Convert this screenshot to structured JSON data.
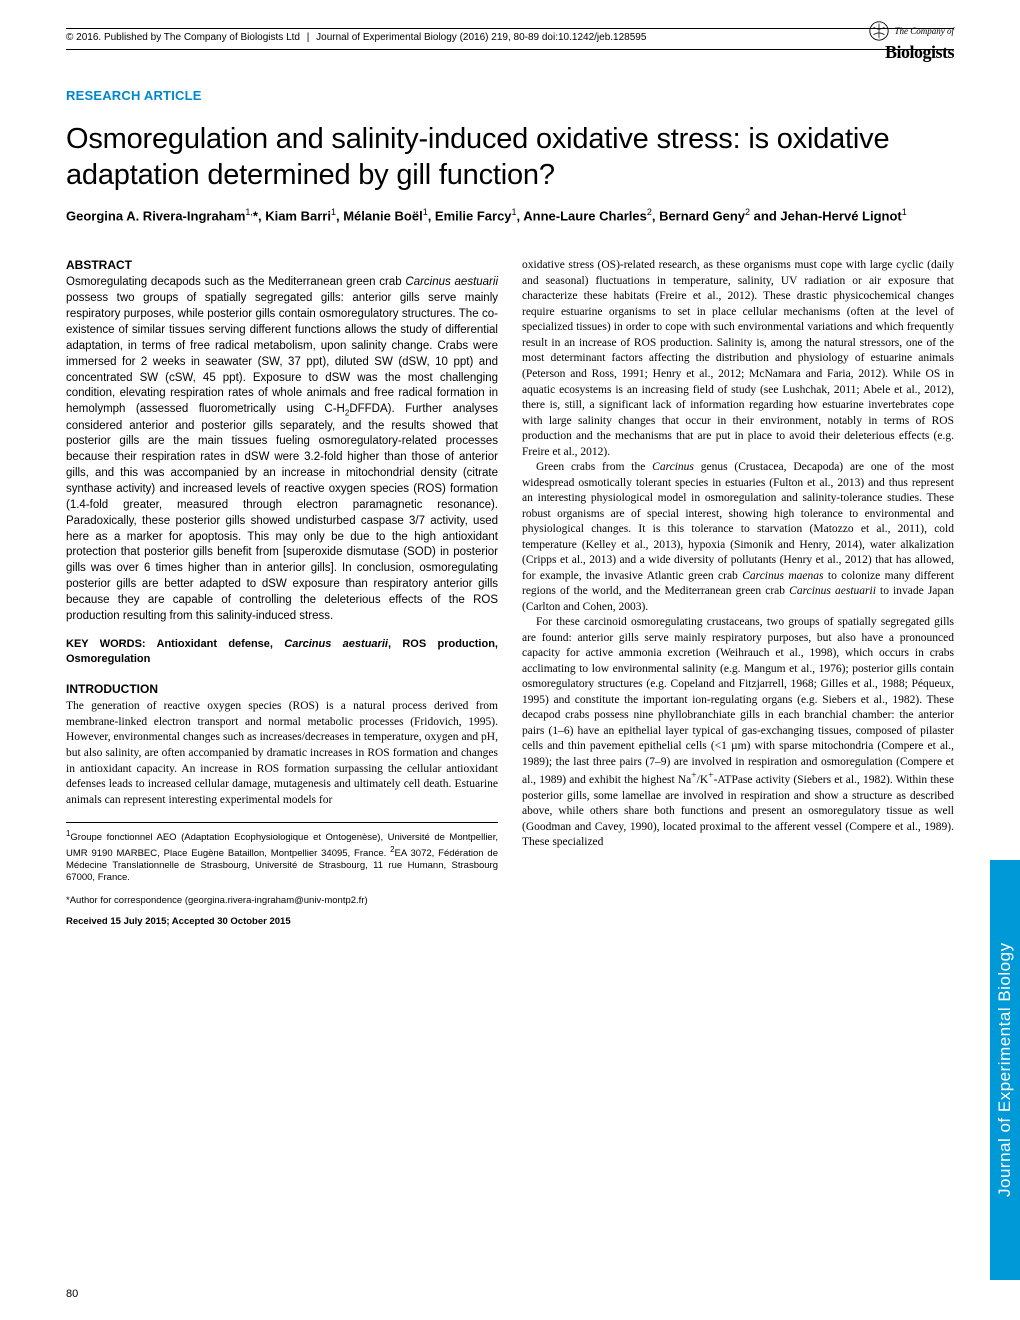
{
  "header": {
    "copyright": "© 2016. Published by The Company of Biologists Ltd",
    "journal_ref": "Journal of Experimental Biology (2016) 219, 80-89 doi:10.1242/jeb.128595"
  },
  "logo": {
    "line1": "The Company of",
    "line2": "Biologists"
  },
  "article_type": "RESEARCH ARTICLE",
  "title": "Osmoregulation and salinity-induced oxidative stress: is oxidative adaptation determined by gill function?",
  "authors_html": "Georgina A. Rivera-Ingraham<sup>1,</sup>*, Kiam Barri<sup>1</sup>, Mélanie Boël<sup>1</sup>, Emilie Farcy<sup>1</sup>, Anne-Laure Charles<sup>2</sup>, Bernard Geny<sup>2</sup> and Jehan-Hervé Lignot<sup>1</sup>",
  "abstract": {
    "heading": "ABSTRACT",
    "text_html": "Osmoregulating decapods such as the Mediterranean green crab <em>Carcinus aestuarii</em> possess two groups of spatially segregated gills: anterior gills serve mainly respiratory purposes, while posterior gills contain osmoregulatory structures. The co-existence of similar tissues serving different functions allows the study of differential adaptation, in terms of free radical metabolism, upon salinity change. Crabs were immersed for 2 weeks in seawater (SW, 37 ppt), diluted SW (dSW, 10 ppt) and concentrated SW (cSW, 45 ppt). Exposure to dSW was the most challenging condition, elevating respiration rates of whole animals and free radical formation in hemolymph (assessed fluorometrically using C-H<sub>2</sub>DFFDA). Further analyses considered anterior and posterior gills separately, and the results showed that posterior gills are the main tissues fueling osmoregulatory-related processes because their respiration rates in dSW were 3.2-fold higher than those of anterior gills, and this was accompanied by an increase in mitochondrial density (citrate synthase activity) and increased levels of reactive oxygen species (ROS) formation (1.4-fold greater, measured through electron paramagnetic resonance). Paradoxically, these posterior gills showed undisturbed caspase 3/7 activity, used here as a marker for apoptosis. This may only be due to the high antioxidant protection that posterior gills benefit from [superoxide dismutase (SOD) in posterior gills was over 6 times higher than in anterior gills]. In conclusion, osmoregulating posterior gills are better adapted to dSW exposure than respiratory anterior gills because they are capable of controlling the deleterious effects of the ROS production resulting from this salinity-induced stress."
  },
  "keywords": {
    "label": "KEY WORDS:",
    "text_html": "Antioxidant defense, <em>Carcinus aestuarii</em>, ROS production, Osmoregulation"
  },
  "introduction": {
    "heading": "INTRODUCTION",
    "para1_html": "The generation of reactive oxygen species (ROS) is a natural process derived from membrane-linked electron transport and normal metabolic processes (Fridovich, 1995). However, environmental changes such as increases/decreases in temperature, oxygen and pH, but also salinity, are often accompanied by dramatic increases in ROS formation and changes in antioxidant capacity. An increase in ROS formation surpassing the cellular antioxidant defenses leads to increased cellular damage, mutagenesis and ultimately cell death. Estuarine animals can represent interesting experimental models for"
  },
  "affiliations": "<sup>1</sup>Groupe fonctionnel AEO (Adaptation Ecophysiologique et Ontogenèse), Université de Montpellier, UMR 9190 MARBEC, Place Eugène Bataillon, Montpellier 34095, France. <sup>2</sup>EA 3072, Fédération de Médecine Translationnelle de Strasbourg, Université de Strasbourg, 11 rue Humann, Strasbourg 67000, France.",
  "correspondence": "*Author for correspondence (georgina.rivera-ingraham@univ-montp2.fr)",
  "dates": "Received 15 July 2015; Accepted 30 October 2015",
  "right_column": {
    "para1_html": "oxidative stress (OS)-related research, as these organisms must cope with large cyclic (daily and seasonal) fluctuations in temperature, salinity, UV radiation or air exposure that characterize these habitats (Freire et al., 2012). These drastic physicochemical changes require estuarine organisms to set in place cellular mechanisms (often at the level of specialized tissues) in order to cope with such environmental variations and which frequently result in an increase of ROS production. Salinity is, among the natural stressors, one of the most determinant factors affecting the distribution and physiology of estuarine animals (Peterson and Ross, 1991; Henry et al., 2012; McNamara and Faria, 2012). While OS in aquatic ecosystems is an increasing field of study (see Lushchak, 2011; Abele et al., 2012), there is, still, a significant lack of information regarding how estuarine invertebrates cope with large salinity changes that occur in their environment, notably in terms of ROS production and the mechanisms that are put in place to avoid their deleterious effects (e.g. Freire et al., 2012).",
    "para2_html": "Green crabs from the <em>Carcinus</em> genus (Crustacea, Decapoda) are one of the most widespread osmotically tolerant species in estuaries (Fulton et al., 2013) and thus represent an interesting physiological model in osmoregulation and salinity-tolerance studies. These robust organisms are of special interest, showing high tolerance to environmental and physiological changes. It is this tolerance to starvation (Matozzo et al., 2011), cold temperature (Kelley et al., 2013), hypoxia (Simonik and Henry, 2014), water alkalization (Cripps et al., 2013) and a wide diversity of pollutants (Henry et al., 2012) that has allowed, for example, the invasive Atlantic green crab <em>Carcinus maenas</em> to colonize many different regions of the world, and the Mediterranean green crab <em>Carcinus aestuarii</em> to invade Japan (Carlton and Cohen, 2003).",
    "para3_html": "For these carcinoid osmoregulating crustaceans, two groups of spatially segregated gills are found: anterior gills serve mainly respiratory purposes, but also have a pronounced capacity for active ammonia excretion (Weihrauch et al., 1998), which occurs in crabs acclimating to low environmental salinity (e.g. Mangum et al., 1976); posterior gills contain osmoregulatory structures (e.g. Copeland and Fitzjarrell, 1968; Gilles et al., 1988; Péqueux, 1995) and constitute the important ion-regulating organs (e.g. Siebers et al., 1982). These decapod crabs possess nine phyllobranchiate gills in each branchial chamber: the anterior pairs (1–6) have an epithelial layer typical of gas-exchanging tissues, composed of pilaster cells and thin pavement epithelial cells (<1 µm) with sparse mitochondria (Compere et al., 1989); the last three pairs (7–9) are involved in respiration and osmoregulation (Compere et al., 1989) and exhibit the highest Na<sup>+</sup>/K<sup>+</sup>-ATPase activity (Siebers et al., 1982). Within these posterior gills, some lamellae are involved in respiration and show a structure as described above, while others share both functions and present an osmoregulatory tissue as well (Goodman and Cavey, 1990), located proximal to the afferent vessel (Compere et al., 1989). These specialized"
  },
  "page_number": "80",
  "side_tab": "Journal of Experimental Biology",
  "colors": {
    "accent": "#0088cc",
    "tab": "#0099d8"
  }
}
